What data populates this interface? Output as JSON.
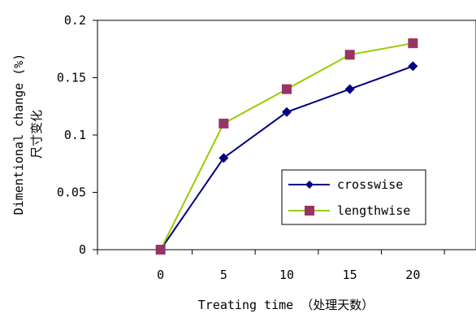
{
  "chart_data": {
    "type": "line",
    "title": "",
    "xlabel": "Treating time （处理天数）",
    "ylabel_lines": [
      "Dimentional change (%)",
      "尺寸变化"
    ],
    "x": [
      0,
      5,
      10,
      15,
      20
    ],
    "xlim": [
      -5,
      25
    ],
    "ylim": [
      0,
      0.2
    ],
    "x_ticks": [
      "0",
      "5",
      "10",
      "15",
      "20"
    ],
    "y_ticks": [
      "0",
      "0.05",
      "0.1",
      "0.15",
      "0.2"
    ],
    "grid": false,
    "legend_position": "right-center",
    "series": [
      {
        "name": "crosswise",
        "values": [
          0,
          0.08,
          0.12,
          0.14,
          0.16
        ],
        "color": "#000080",
        "marker": "diamond"
      },
      {
        "name": "lengthwise",
        "values": [
          0,
          0.11,
          0.14,
          0.17,
          0.18
        ],
        "color": "#99CC00",
        "marker_color": "#993366",
        "marker": "square"
      }
    ]
  }
}
